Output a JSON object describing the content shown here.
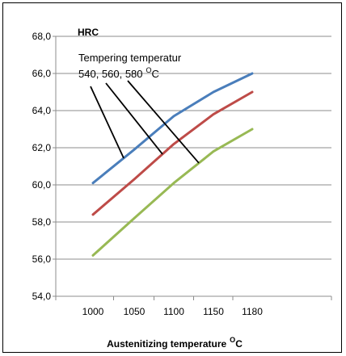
{
  "chart_data": {
    "type": "line",
    "title": "",
    "ylabel": "HRC",
    "xlabel": "Austenitizing temperature",
    "xlabel_sup": "O",
    "xlabel_suffix": "C",
    "categories": [
      "1000",
      "1050",
      "1100",
      "1150",
      "1180"
    ],
    "x": [
      1000,
      1050,
      1100,
      1150,
      1180
    ],
    "ylim": [
      54.0,
      68.0
    ],
    "ytick_labels": [
      "68,0",
      "66,0",
      "64,0",
      "62,0",
      "60,0",
      "58,0",
      "56,0",
      "54,0"
    ],
    "yticks": [
      68,
      66,
      64,
      62,
      60,
      58,
      56,
      54
    ],
    "grid": true,
    "annotation_line1": "Tempering  temperatur",
    "annotation_line2": "540, 560, 580",
    "annotation_sup": "O",
    "annotation_suffix": "C",
    "series": [
      {
        "color": "#4a7ebb",
        "values": [
          60.1,
          61.9,
          63.7,
          65.0,
          66.0
        ]
      },
      {
        "color": "#be4b48",
        "values": [
          58.4,
          60.3,
          62.2,
          63.8,
          65.0
        ]
      },
      {
        "color": "#98b954",
        "values": [
          56.2,
          58.2,
          60.1,
          61.8,
          63.0
        ]
      }
    ]
  }
}
